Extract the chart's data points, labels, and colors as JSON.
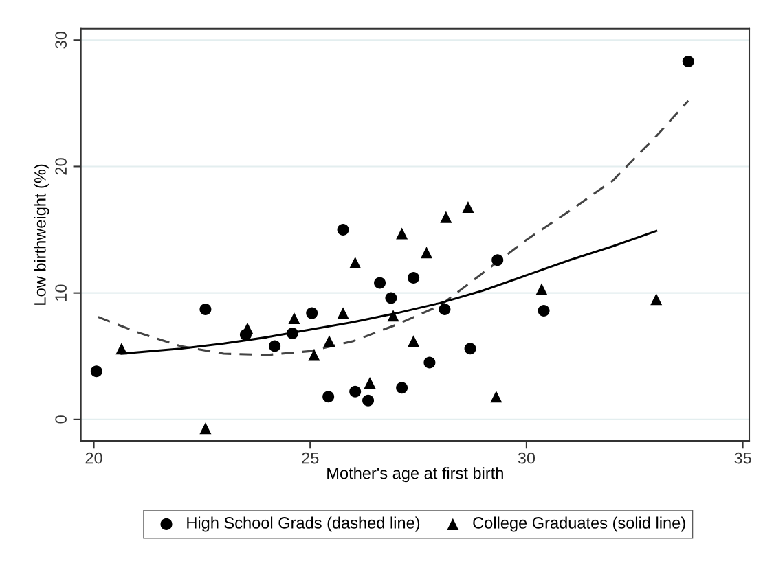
{
  "chart_data": {
    "type": "scatter",
    "xlabel": "Mother's age at first birth",
    "ylabel": "Low birthweight (%)",
    "xlim": [
      19.7,
      35.15
    ],
    "ylim": [
      -1.7,
      30.9
    ],
    "xticks": [
      20,
      25,
      30,
      35
    ],
    "yticks": [
      0,
      10,
      20,
      30
    ],
    "grid": "y",
    "legend": "bottom",
    "series": [
      {
        "name": "High School Grads (dashed line)",
        "marker": "circle",
        "color": "#000000",
        "x": [
          20.06,
          22.58,
          23.51,
          24.18,
          24.59,
          25.04,
          25.42,
          25.76,
          26.04,
          26.34,
          26.61,
          26.87,
          27.12,
          27.39,
          27.76,
          28.11,
          28.7,
          29.33,
          30.4,
          33.74
        ],
        "values": [
          3.8,
          8.7,
          6.7,
          5.8,
          6.8,
          8.4,
          1.8,
          15.0,
          2.2,
          1.5,
          10.8,
          9.6,
          2.5,
          11.2,
          4.5,
          8.7,
          5.6,
          12.6,
          8.6,
          28.3
        ]
      },
      {
        "name": "College Graduates (solid line)",
        "marker": "triangle",
        "color": "#000000",
        "x": [
          20.64,
          22.58,
          23.55,
          24.63,
          25.09,
          25.44,
          25.76,
          26.04,
          26.38,
          26.92,
          27.12,
          27.39,
          27.69,
          28.14,
          28.65,
          29.3,
          30.35,
          33.0
        ],
        "values": [
          5.6,
          -0.7,
          7.2,
          8.0,
          5.1,
          6.2,
          8.4,
          12.4,
          2.9,
          8.2,
          14.7,
          6.2,
          13.2,
          16.0,
          16.8,
          1.8,
          10.3,
          9.5
        ]
      },
      {
        "type": "line",
        "line_style": "dashed",
        "marker": "none",
        "color": "#444444",
        "x": [
          20.1,
          21,
          22,
          23,
          24,
          25,
          26,
          27,
          28,
          29,
          30,
          31,
          32,
          33,
          33.74
        ],
        "values": [
          8.1,
          6.9,
          5.8,
          5.2,
          5.1,
          5.4,
          6.2,
          7.5,
          9.0,
          11.6,
          14.2,
          16.5,
          18.9,
          22.4,
          25.2
        ]
      },
      {
        "type": "line",
        "line_style": "solid",
        "marker": "none",
        "color": "#000000",
        "x": [
          20.64,
          22,
          23,
          24,
          25,
          26,
          27,
          28,
          29,
          30,
          31,
          32,
          33
        ],
        "values": [
          5.2,
          5.6,
          6.0,
          6.5,
          7.1,
          7.7,
          8.4,
          9.2,
          10.2,
          11.4,
          12.6,
          13.7,
          14.9
        ]
      }
    ]
  }
}
